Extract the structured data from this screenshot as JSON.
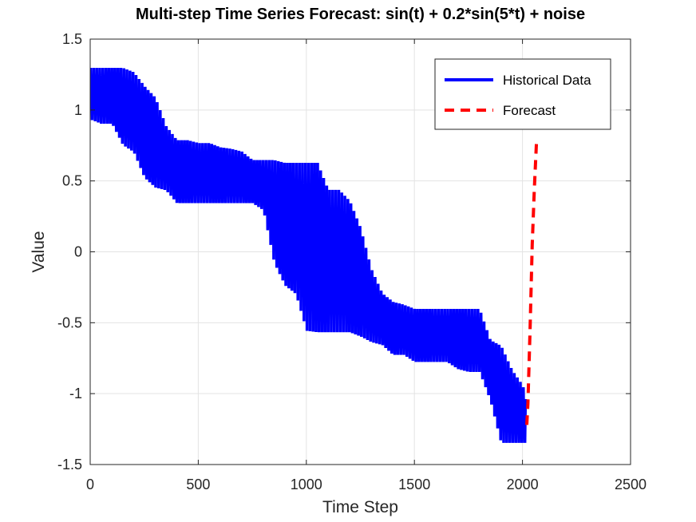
{
  "chart_data": {
    "type": "line",
    "title": "Multi-step Time Series Forecast: sin(t) + 0.2*sin(5*t) + noise",
    "xlabel": "Time Step",
    "ylabel": "Value",
    "xlim": [
      0,
      2500
    ],
    "ylim": [
      -1.5,
      1.5
    ],
    "xticks": [
      "0",
      "500",
      "1000",
      "1500",
      "2000",
      "2500"
    ],
    "yticks": [
      "1.5",
      "1",
      "0.5",
      "0",
      "-0.5",
      "-1",
      "-1.5"
    ],
    "grid": true,
    "legend_position": "top-right",
    "colors": {
      "historical": "#0000ff",
      "forecast": "#ff0000"
    },
    "series": [
      {
        "name": "Historical Data",
        "style": "solid",
        "x": [
          0,
          50,
          100,
          150,
          200,
          250,
          300,
          350,
          400,
          450,
          500,
          550,
          600,
          650,
          700,
          750,
          800,
          850,
          900,
          950,
          1000,
          1050,
          1100,
          1150,
          1200,
          1250,
          1300,
          1350,
          1400,
          1450,
          1500,
          1550,
          1600,
          1650,
          1700,
          1750,
          1800,
          1850,
          1900,
          1950,
          2000,
          2020
        ],
        "band_upper": [
          1.29,
          1.29,
          1.29,
          1.29,
          1.26,
          1.16,
          1.08,
          0.88,
          0.78,
          0.78,
          0.76,
          0.76,
          0.73,
          0.72,
          0.7,
          0.64,
          0.64,
          0.64,
          0.62,
          0.62,
          0.62,
          0.62,
          0.43,
          0.43,
          0.35,
          0.16,
          -0.13,
          -0.3,
          -0.36,
          -0.38,
          -0.41,
          -0.41,
          -0.41,
          -0.41,
          -0.41,
          -0.41,
          -0.41,
          -0.63,
          -0.67,
          -0.84,
          -0.95,
          -1.07
        ],
        "band_lower": [
          0.94,
          0.91,
          0.91,
          0.76,
          0.71,
          0.53,
          0.46,
          0.44,
          0.35,
          0.35,
          0.35,
          0.35,
          0.35,
          0.35,
          0.35,
          0.35,
          0.3,
          -0.07,
          -0.23,
          -0.29,
          -0.55,
          -0.56,
          -0.56,
          -0.56,
          -0.56,
          -0.59,
          -0.63,
          -0.65,
          -0.72,
          -0.72,
          -0.77,
          -0.77,
          -0.77,
          -0.77,
          -0.82,
          -0.84,
          -0.84,
          -1.04,
          -1.34,
          -1.34,
          -1.34,
          -1.34
        ]
      },
      {
        "name": "Forecast",
        "style": "dashed",
        "x": [
          2020,
          2025,
          2035,
          2045,
          2055,
          2065
        ],
        "values": [
          -1.22,
          -1.07,
          -0.55,
          0.05,
          0.45,
          0.78
        ]
      }
    ]
  }
}
